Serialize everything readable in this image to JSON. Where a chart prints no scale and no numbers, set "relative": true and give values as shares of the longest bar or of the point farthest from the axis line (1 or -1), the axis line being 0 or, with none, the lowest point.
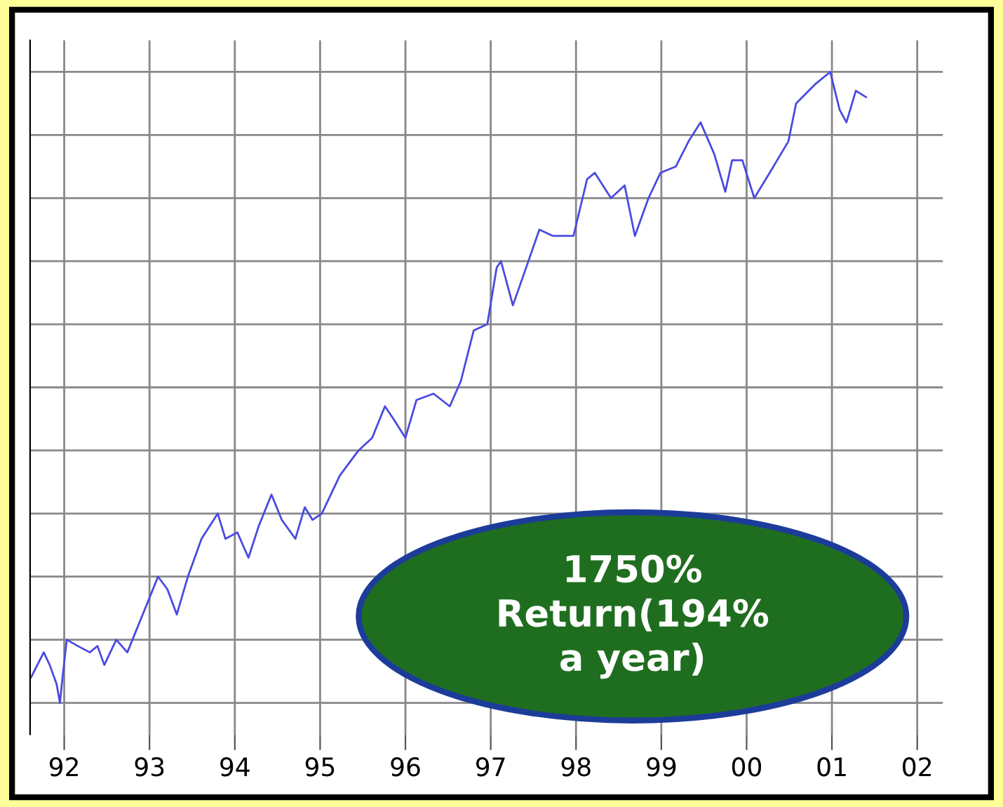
{
  "chart_data": {
    "type": "line",
    "relative": true,
    "color": "#4a4ae0",
    "grid": true,
    "marker": "none",
    "line_style": "solid",
    "xlim": [
      1991.6,
      2002.3
    ],
    "xticks": [
      {
        "value": 1992,
        "label": "92"
      },
      {
        "value": 1993,
        "label": "93"
      },
      {
        "value": 1994,
        "label": "94"
      },
      {
        "value": 1995,
        "label": "95"
      },
      {
        "value": 1996,
        "label": "96"
      },
      {
        "value": 1997,
        "label": "97"
      },
      {
        "value": 1998,
        "label": "98"
      },
      {
        "value": 1999,
        "label": "99"
      },
      {
        "value": 2000,
        "label": "00"
      },
      {
        "value": 2001,
        "label": "01"
      },
      {
        "value": 2002,
        "label": "02"
      }
    ],
    "tick_labels": "x",
    "annotations": [
      "1750%\nReturn(194%\na year)"
    ],
    "x": [
      1991.61,
      1991.76,
      1991.83,
      1991.91,
      1991.95,
      1991.98,
      1992.03,
      1992.16,
      1992.3,
      1992.39,
      1992.47,
      1992.61,
      1992.74,
      1992.98,
      1993.1,
      1993.21,
      1993.32,
      1993.45,
      1993.61,
      1993.8,
      1993.89,
      1994.03,
      1994.16,
      1994.28,
      1994.43,
      1994.55,
      1994.71,
      1994.82,
      1994.91,
      1995.02,
      1995.23,
      1995.45,
      1995.61,
      1995.76,
      1995.86,
      1996.0,
      1996.13,
      1996.33,
      1996.52,
      1996.65,
      1996.8,
      1996.96,
      1997.07,
      1997.12,
      1997.26,
      1997.39,
      1997.57,
      1997.73,
      1997.97,
      1998.13,
      1998.22,
      1998.41,
      1998.57,
      1998.69,
      1998.85,
      1998.99,
      1999.17,
      1999.32,
      1999.46,
      1999.62,
      1999.75,
      1999.83,
      1999.95,
      2000.09,
      2000.27,
      2000.49,
      2000.58,
      2000.8,
      2000.98,
      2001.09,
      2001.17,
      2001.28,
      2001.4
    ],
    "values": [
      0.04,
      0.08,
      0.06,
      0.03,
      0,
      0.04,
      0.1,
      0.09,
      0.08,
      0.09,
      0.06,
      0.1,
      0.08,
      0.16,
      0.2,
      0.18,
      0.14,
      0.2,
      0.26,
      0.3,
      0.26,
      0.27,
      0.23,
      0.28,
      0.33,
      0.29,
      0.26,
      0.31,
      0.29,
      0.3,
      0.36,
      0.4,
      0.42,
      0.47,
      0.45,
      0.42,
      0.48,
      0.49,
      0.47,
      0.51,
      0.59,
      0.6,
      0.69,
      0.7,
      0.63,
      0.68,
      0.75,
      0.74,
      0.74,
      0.83,
      0.84,
      0.8,
      0.82,
      0.74,
      0.8,
      0.84,
      0.85,
      0.89,
      0.92,
      0.87,
      0.81,
      0.86,
      0.86,
      0.8,
      0.84,
      0.89,
      0.95,
      0.98,
      1.0,
      0.94,
      0.92,
      0.97,
      0.96
    ]
  }
}
